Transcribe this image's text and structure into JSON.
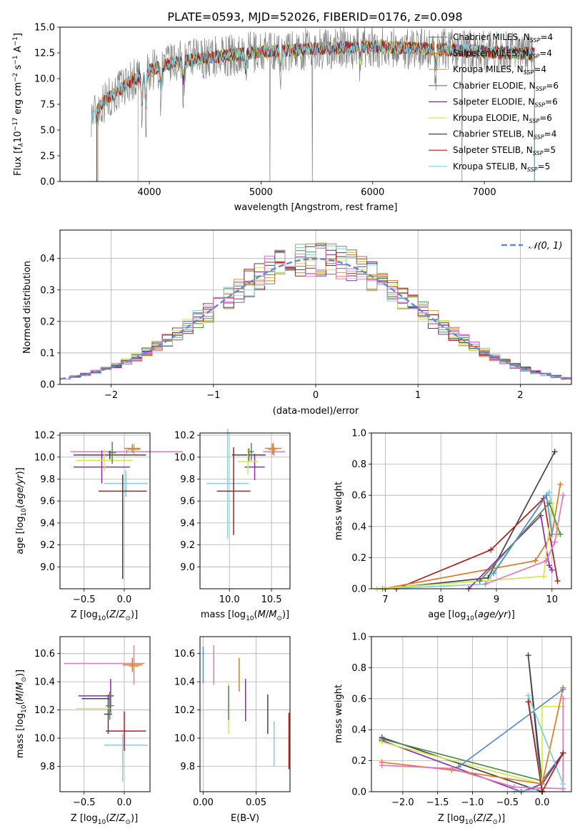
{
  "title": "PLATE=0593, MJD=52026, FIBERID=0176, z=0.098",
  "colors": [
    "#7f7f7f",
    "#e07b1f",
    "#c8a23a",
    "#4e8c4e",
    "#8c2bb0",
    "#d4e84a",
    "#444444",
    "#b01c1c",
    "#7fd0dc"
  ],
  "chart_data": [
    {
      "id": "spectrum",
      "type": "line",
      "xlabel": "wavelength [Angstrom, rest frame]",
      "ylabel": "Flux [f_λ 10^-17 erg cm^-2 s^-1 A^-1]",
      "xlim": [
        3200,
        7780
      ],
      "ylim": [
        0,
        15
      ],
      "xticks": [
        4000,
        5000,
        6000,
        7000
      ],
      "yticks": [
        0.0,
        2.5,
        5.0,
        7.5,
        10.0,
        12.5,
        15.0
      ],
      "grid": false,
      "legend_placement": "right",
      "x_range": [
        3480,
        7450
      ],
      "series": [
        {
          "name": "Chabrier MILES, N_SSP=4",
          "color": "#7f7f7f",
          "style": "data"
        },
        {
          "name": "Salpeter MILES, N_SSP=4",
          "color": "#e07b1f",
          "start": 3530
        },
        {
          "name": "Kroupa MILES, N_SSP=4",
          "color": "#c8a23a",
          "start": 3540
        },
        {
          "name": "Chabrier ELODIE, N_SSP=6",
          "color": "#4e8c4e",
          "start": 3900
        },
        {
          "name": "Salpeter ELODIE, N_SSP=6",
          "color": "#8c2bb0",
          "start": 3900
        },
        {
          "name": "Kroupa ELODIE, N_SSP=6",
          "color": "#d4e84a",
          "start": 3900
        },
        {
          "name": "Chabrier STELIB, N_SSP=4",
          "color": "#444444",
          "start": 3530
        },
        {
          "name": "Salpeter STELIB, N_SSP=5",
          "color": "#b01c1c",
          "start": 3530
        },
        {
          "name": "Kroupa STELIB, N_SSP=5",
          "color": "#7fd0dc",
          "start": 3480
        }
      ],
      "continuum": [
        [
          3480,
          6.4
        ],
        [
          3600,
          7.8
        ],
        [
          3800,
          9.5
        ],
        [
          4000,
          10.8
        ],
        [
          4200,
          11.5
        ],
        [
          4500,
          12.0
        ],
        [
          5000,
          12.6
        ],
        [
          5500,
          12.9
        ],
        [
          6000,
          13.1
        ],
        [
          6500,
          12.9
        ],
        [
          7000,
          12.6
        ],
        [
          7450,
          12.4
        ]
      ],
      "absorption_lines": [
        [
          3934,
          5.0
        ],
        [
          3969,
          5.5
        ],
        [
          4102,
          3.0
        ],
        [
          4304,
          3.0
        ],
        [
          4861,
          2.5
        ],
        [
          5175,
          3.0
        ],
        [
          5890,
          2.0
        ],
        [
          6563,
          3.0
        ]
      ],
      "sky_dips": [
        5080,
        5460,
        6800
      ]
    },
    {
      "id": "residual-histogram",
      "type": "histogram",
      "xlabel": "(data-model)/error",
      "ylabel": "Normed distribution",
      "xlim": [
        -2.5,
        2.5
      ],
      "ylim": [
        0,
        0.49
      ],
      "xticks": [
        -2,
        -1,
        0,
        1,
        2
      ],
      "yticks": [
        0.0,
        0.1,
        0.2,
        0.3,
        0.4
      ],
      "grid": true,
      "bin_width": 0.1,
      "legend": [
        {
          "label": "𝒩(0, 1)",
          "style": "dashed",
          "color": "#5b8bd6"
        }
      ],
      "legend_placement": "top-right"
    },
    {
      "id": "age-vs-Z",
      "type": "errorbar",
      "xlabel": "Z [log10(Z/Z⊙)]",
      "ylabel": "age [log10(age/yr)]",
      "xlim": [
        -0.8,
        0.32
      ],
      "ylim": [
        8.8,
        10.22
      ],
      "xticks": [
        -0.5,
        0.0
      ],
      "yticks": [
        9.0,
        9.2,
        9.4,
        9.6,
        9.8,
        10.0,
        10.2
      ],
      "grid": true,
      "points": [
        {
          "color": "#e377c2",
          "x": 0.03,
          "xerr": 0.7,
          "y": 10.05,
          "yerr": 0.02
        },
        {
          "color": "#444444",
          "x": -0.18,
          "xerr": 0.45,
          "y": 10.02,
          "yerr": 0.04
        },
        {
          "color": "#8c2bb0",
          "x": -0.28,
          "xerr": 0.35,
          "y": 9.91,
          "yerr": 0.15
        },
        {
          "color": "#d4e84a",
          "x": -0.25,
          "xerr": 0.35,
          "y": 9.97,
          "yerr": 0.1
        },
        {
          "color": "#4e8c4e",
          "x": -0.15,
          "xerr": 0.05,
          "y": 10.04,
          "yerr": 0.1
        },
        {
          "color": "#e07b1f",
          "x": 0.1,
          "xerr": 0.1,
          "y": 10.08,
          "yerr": 0.04
        },
        {
          "color": "#c8a23a",
          "x": 0.12,
          "xerr": 0.08,
          "y": 10.07,
          "yerr": 0.05
        },
        {
          "color": "#7fd0dc",
          "x": 0.02,
          "xerr": 0.27,
          "y": 9.76,
          "yerr": 0.12
        },
        {
          "color": "#b01c1c",
          "x": -0.02,
          "xerr": 0.3,
          "y": 9.69,
          "yerr": 0.15
        },
        {
          "color": "#444444",
          "x": -0.02,
          "xerr": 0.0,
          "y": 9.36,
          "yerr": 0.47
        }
      ]
    },
    {
      "id": "age-vs-mass",
      "type": "errorbar",
      "xlabel": "mass [log10(M/M⊙)]",
      "ylabel": "",
      "xlim": [
        9.65,
        10.72
      ],
      "ylim": [
        8.8,
        10.22
      ],
      "xticks": [
        10.0,
        10.5
      ],
      "yticks": [
        9.0,
        9.2,
        9.4,
        9.6,
        9.8,
        10.0,
        10.2
      ],
      "grid": true,
      "points": [
        {
          "color": "#e377c2",
          "x": 10.53,
          "xerr": 0.13,
          "y": 10.05,
          "yerr": 0.04
        },
        {
          "color": "#444444",
          "x": 10.23,
          "xerr": 0.2,
          "y": 10.02,
          "yerr": 0.06
        },
        {
          "color": "#8c2bb0",
          "x": 10.3,
          "xerr": 0.12,
          "y": 9.91,
          "yerr": 0.12
        },
        {
          "color": "#d4e84a",
          "x": 10.22,
          "xerr": 0.12,
          "y": 9.96,
          "yerr": 0.12
        },
        {
          "color": "#4e8c4e",
          "x": 10.26,
          "xerr": 0.03,
          "y": 10.05,
          "yerr": 0.08
        },
        {
          "color": "#e07b1f",
          "x": 10.52,
          "xerr": 0.1,
          "y": 10.08,
          "yerr": 0.05
        },
        {
          "color": "#c8a23a",
          "x": 10.51,
          "xerr": 0.05,
          "y": 10.07,
          "yerr": 0.05
        },
        {
          "color": "#7fd0dc",
          "x": 9.98,
          "xerr": 0.25,
          "y": 9.76,
          "yerr": 0.5
        },
        {
          "color": "#b01c1c",
          "x": 10.05,
          "xerr": 0.2,
          "y": 9.69,
          "yerr": 0.4
        }
      ]
    },
    {
      "id": "massweight-vs-age",
      "type": "line",
      "xlabel": "age [log10(age/yr)]",
      "ylabel": "mass weight",
      "xlim": [
        6.75,
        10.35
      ],
      "ylim": [
        0,
        1.0
      ],
      "xticks": [
        7,
        8,
        9,
        10
      ],
      "yticks": [
        0.0,
        0.2,
        0.4,
        0.6,
        0.8,
        1.0
      ],
      "grid": true,
      "series": [
        {
          "color": "#444444",
          "points": [
            [
              7.0,
              0.0
            ],
            [
              8.85,
              0.07
            ],
            [
              10.05,
              0.88
            ]
          ]
        },
        {
          "color": "#b01c1c",
          "points": [
            [
              7.2,
              0.0
            ],
            [
              8.9,
              0.25
            ],
            [
              9.85,
              0.58
            ],
            [
              10.1,
              0.05
            ]
          ]
        },
        {
          "color": "#7fd0dc",
          "points": [
            [
              7.0,
              0.0
            ],
            [
              8.8,
              0.03
            ],
            [
              9.95,
              0.62
            ],
            [
              10.1,
              0.35
            ]
          ]
        },
        {
          "color": "#e07b1f",
          "points": [
            [
              6.95,
              0.0
            ],
            [
              9.7,
              0.18
            ],
            [
              10.0,
              0.35
            ],
            [
              10.15,
              0.67
            ]
          ]
        },
        {
          "color": "#8c2bb0",
          "points": [
            [
              8.5,
              0.0
            ],
            [
              9.8,
              0.47
            ],
            [
              9.95,
              0.15
            ],
            [
              10.0,
              0.12
            ]
          ]
        },
        {
          "color": "#d4e84a",
          "points": [
            [
              6.85,
              0.0
            ],
            [
              9.85,
              0.08
            ],
            [
              10.0,
              0.55
            ],
            [
              10.1,
              0.35
            ]
          ]
        },
        {
          "color": "#4e8c4e",
          "points": [
            [
              8.7,
              0.05
            ],
            [
              9.95,
              0.55
            ],
            [
              10.15,
              0.35
            ]
          ]
        },
        {
          "color": "#e377c2",
          "points": [
            [
              8.8,
              0.03
            ],
            [
              9.9,
              0.18
            ],
            [
              10.05,
              0.3
            ],
            [
              10.2,
              0.6
            ]
          ]
        },
        {
          "color": "#5b8bd6",
          "points": [
            [
              8.95,
              0.1
            ],
            [
              9.9,
              0.6
            ],
            [
              10.0,
              0.35
            ]
          ]
        }
      ]
    },
    {
      "id": "mass-vs-Z",
      "type": "errorbar",
      "xlabel": "Z [log10(Z/Z⊙)]",
      "ylabel": "mass [log10(M/M⊙)]",
      "xlim": [
        -0.8,
        0.32
      ],
      "ylim": [
        9.62,
        10.72
      ],
      "xticks": [
        -0.5,
        0.0
      ],
      "yticks": [
        9.8,
        10.0,
        10.2,
        10.4,
        10.6
      ],
      "grid": true,
      "points": [
        {
          "color": "#e377c2",
          "x": -0.25,
          "xerr": 0.5,
          "y": 10.53,
          "yerr": 0.0
        },
        {
          "color": "#e377c2",
          "x": 0.12,
          "xerr": 0.0,
          "y": 10.52,
          "yerr": 0.14
        },
        {
          "color": "#444444",
          "x": -0.35,
          "xerr": 0.18,
          "y": 10.28,
          "yerr": 0.0
        },
        {
          "color": "#444444",
          "x": -0.2,
          "xerr": 0.05,
          "y": 10.17,
          "yerr": 0.14
        },
        {
          "color": "#8c2bb0",
          "x": -0.35,
          "xerr": 0.22,
          "y": 10.3,
          "yerr": 0.0
        },
        {
          "color": "#8c2bb0",
          "x": -0.17,
          "xerr": 0.0,
          "y": 10.3,
          "yerr": 0.12
        },
        {
          "color": "#d4e84a",
          "x": -0.38,
          "xerr": 0.22,
          "y": 10.21,
          "yerr": 0.0
        },
        {
          "color": "#4e8c4e",
          "x": -0.18,
          "xerr": 0.05,
          "y": 10.23,
          "yerr": 0.1
        },
        {
          "color": "#e07b1f",
          "x": 0.1,
          "xerr": 0.12,
          "y": 10.52,
          "yerr": 0.05
        },
        {
          "color": "#c8a23a",
          "x": 0.12,
          "xerr": 0.06,
          "y": 10.51,
          "yerr": 0.05
        },
        {
          "color": "#7fd0dc",
          "x": 0.02,
          "xerr": 0.27,
          "y": 9.95,
          "yerr": 0.0
        },
        {
          "color": "#7fd0dc",
          "x": -0.02,
          "xerr": 0.0,
          "y": 9.86,
          "yerr": 0.17
        },
        {
          "color": "#b01c1c",
          "x": 0.02,
          "xerr": 0.25,
          "y": 10.05,
          "yerr": 0.0
        },
        {
          "color": "#b01c1c",
          "x": 0.0,
          "xerr": 0.0,
          "y": 10.05,
          "yerr": 0.14
        }
      ]
    },
    {
      "id": "mass-vs-EBV",
      "type": "errorbar",
      "xlabel": "E(B-V)",
      "ylabel": "",
      "xlim": [
        -0.003,
        0.082
      ],
      "ylim": [
        9.62,
        10.72
      ],
      "xticks": [
        0.0,
        0.05
      ],
      "yticks": [
        9.8,
        10.0,
        10.2,
        10.4,
        10.6
      ],
      "grid": true,
      "points": [
        {
          "color": "#5b8bd6",
          "x": 0.0,
          "y": 10.52,
          "yerr": 0.13
        },
        {
          "color": "#e377c2",
          "x": 0.01,
          "y": 10.52,
          "yerr": 0.14
        },
        {
          "color": "#d4e84a",
          "x": 0.024,
          "y": 10.21,
          "yerr": 0.18
        },
        {
          "color": "#4e8c4e",
          "x": 0.024,
          "y": 10.25,
          "yerr": 0.12
        },
        {
          "color": "#e07b1f",
          "x": 0.034,
          "y": 10.45,
          "yerr": 0.12
        },
        {
          "color": "#8c2bb0",
          "x": 0.04,
          "y": 10.27,
          "yerr": 0.15
        },
        {
          "color": "#444444",
          "x": 0.061,
          "y": 10.17,
          "yerr": 0.14
        },
        {
          "color": "#7fd0dc",
          "x": 0.067,
          "y": 9.96,
          "yerr": 0.16
        },
        {
          "color": "#b01c1c",
          "x": 0.081,
          "y": 9.98,
          "yerr": 0.2
        }
      ]
    },
    {
      "id": "massweight-vs-Z",
      "type": "line",
      "xlabel": "Z [log10(Z/Z⊙)]",
      "ylabel": "mass weight",
      "xlim": [
        -2.45,
        0.42
      ],
      "ylim": [
        0,
        1.0
      ],
      "xticks": [
        -2.0,
        -1.5,
        -1.0,
        -0.5,
        0.0
      ],
      "yticks": [
        0.0,
        0.2,
        0.4,
        0.6,
        0.8,
        1.0
      ],
      "grid": true,
      "series": [
        {
          "color": "#444444",
          "points": [
            [
              -2.3,
              0.35
            ],
            [
              0.0,
              0.0
            ],
            [
              -0.2,
              0.88
            ],
            [
              0.0,
              0.05
            ],
            [
              0.3,
              0.25
            ]
          ]
        },
        {
          "color": "#4e8c4e",
          "points": [
            [
              -2.3,
              0.34
            ],
            [
              0.0,
              0.07
            ],
            [
              0.3,
              0.25
            ]
          ]
        },
        {
          "color": "#8c2bb0",
          "points": [
            [
              -2.3,
              0.33
            ],
            [
              -0.3,
              0.0
            ],
            [
              0.0,
              0.05
            ],
            [
              0.3,
              0.25
            ]
          ]
        },
        {
          "color": "#d4e84a",
          "points": [
            [
              -2.3,
              0.32
            ],
            [
              0.0,
              0.05
            ],
            [
              0.0,
              0.55
            ],
            [
              0.3,
              0.55
            ]
          ]
        },
        {
          "color": "#e07b1f",
          "points": [
            [
              -2.3,
              0.19
            ],
            [
              -1.3,
              0.14
            ],
            [
              0.0,
              0.05
            ],
            [
              0.3,
              0.67
            ]
          ]
        },
        {
          "color": "#e377c2",
          "points": [
            [
              -2.3,
              0.17
            ],
            [
              -1.3,
              0.15
            ],
            [
              -0.4,
              0.03
            ],
            [
              0.3,
              0.02
            ],
            [
              0.3,
              0.6
            ]
          ]
        },
        {
          "color": "#5b8bd6",
          "points": [
            [
              -1.2,
              0.16
            ],
            [
              0.3,
              0.66
            ]
          ]
        },
        {
          "color": "#7fd0dc",
          "points": [
            [
              -0.4,
              0.0
            ],
            [
              0.0,
              0.02
            ],
            [
              -0.2,
              0.62
            ],
            [
              0.3,
              0.05
            ]
          ]
        },
        {
          "color": "#b01c1c",
          "points": [
            [
              -0.2,
              0.58
            ],
            [
              0.0,
              0.0
            ],
            [
              0.3,
              0.25
            ]
          ]
        }
      ]
    }
  ]
}
